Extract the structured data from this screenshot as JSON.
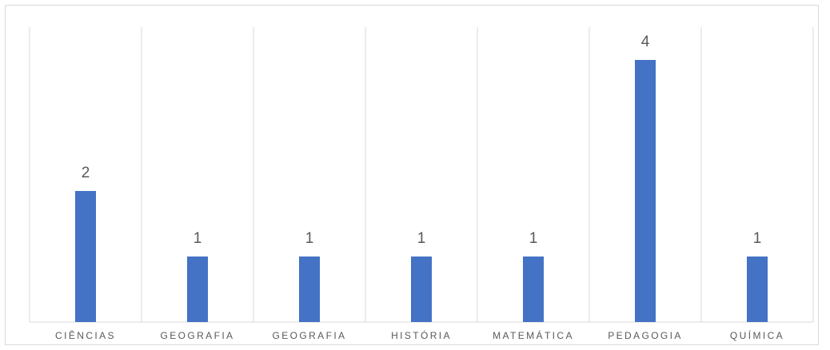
{
  "chart_data": {
    "type": "bar",
    "categories": [
      "CIÊNCIAS",
      "GEOGRAFIA",
      "GEOGRAFIA",
      "HISTÓRIA",
      "MATEMÁTICA",
      "PEDAGOGIA",
      "QUÍMICA"
    ],
    "values": [
      2,
      1,
      1,
      1,
      1,
      4,
      1
    ],
    "data_labels": [
      "2",
      "1",
      "1",
      "1",
      "1",
      "4",
      "1"
    ],
    "title": "",
    "xlabel": "",
    "ylabel": "",
    "ylim": [
      0,
      4.5
    ],
    "grid": "vertical category separators",
    "legend": "none",
    "colors": {
      "bar": "#4472c4",
      "grid": "#d9d9d9",
      "label": "#595959"
    }
  }
}
